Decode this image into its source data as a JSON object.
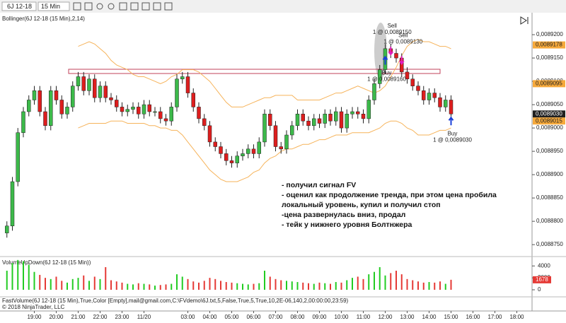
{
  "toolbar": {
    "instrument": "6J 12-18",
    "interval": "15 Min"
  },
  "chart_data": [
    {
      "type": "candlestick",
      "title": "Bollinger(6J 12-18 (15 Min),2,14)",
      "up_color": "#3cb94a",
      "down_color": "#dd1e1e",
      "open": [
        0.0088775,
        0.008879,
        0.0088885,
        0.008899,
        0.0089035,
        0.008906,
        0.008908,
        0.0089035,
        0.0089005,
        0.008908,
        0.008906,
        0.008903,
        0.0089045,
        0.008909,
        0.008911,
        0.008908,
        0.0089105,
        0.0089065,
        0.008909,
        0.0089065,
        0.008906,
        0.0089045,
        0.0089035,
        0.008904,
        0.0089045,
        0.008903,
        0.008905,
        0.0089035,
        0.0089035,
        0.008902,
        0.0089015,
        0.0089045,
        0.0089105,
        0.008911,
        0.0089075,
        0.0089045,
        0.008902,
        0.0089005,
        0.008897,
        0.008896,
        0.0088945,
        0.008893,
        0.0088925,
        0.008894,
        0.0088945,
        0.0088955,
        0.0088945,
        0.008897,
        0.008903,
        0.0089005,
        0.008896,
        0.0088955,
        0.0088985,
        0.0089005,
        0.008903,
        0.0089015,
        0.0089005,
        0.008902,
        0.008901,
        0.008903,
        0.0089015,
        0.0089035,
        0.0089,
        0.008903,
        0.0089035,
        0.008903,
        0.008902,
        0.008906,
        0.0089095,
        0.0089125,
        0.008917,
        0.008916,
        0.008915,
        0.008912,
        0.0089105,
        0.008909,
        0.008908,
        0.008906,
        0.0089075,
        0.0089065,
        0.0089045,
        0.008906
      ],
      "high": [
        0.00888,
        0.0088895,
        0.0089,
        0.0089045,
        0.008907,
        0.008909,
        0.008909,
        0.0089045,
        0.008909,
        0.008909,
        0.008907,
        0.0089055,
        0.00891,
        0.008912,
        0.008912,
        0.0089115,
        0.0089115,
        0.00891,
        0.00891,
        0.0089075,
        0.008907,
        0.0089055,
        0.008905,
        0.0089055,
        0.0089055,
        0.008906,
        0.008906,
        0.0089045,
        0.0089045,
        0.008903,
        0.0089055,
        0.0089115,
        0.008912,
        0.008912,
        0.0089085,
        0.0089055,
        0.008903,
        0.0089015,
        0.008898,
        0.008897,
        0.0088955,
        0.008894,
        0.008895,
        0.0088955,
        0.0088965,
        0.0088965,
        0.008898,
        0.008904,
        0.008904,
        0.0089015,
        0.008897,
        0.0088995,
        0.0089015,
        0.008904,
        0.008904,
        0.0089025,
        0.008903,
        0.008903,
        0.008904,
        0.008904,
        0.0089045,
        0.0089045,
        0.008904,
        0.0089045,
        0.0089045,
        0.008904,
        0.008907,
        0.0089105,
        0.0089135,
        0.008918,
        0.008918,
        0.008917,
        0.008916,
        0.008913,
        0.0089115,
        0.00891,
        0.008909,
        0.0089085,
        0.0089085,
        0.0089075,
        0.008907,
        0.008907
      ],
      "low": [
        0.0088765,
        0.008878,
        0.0088875,
        0.008898,
        0.0089025,
        0.008905,
        0.0089025,
        0.0088995,
        0.0088995,
        0.008905,
        0.008902,
        0.008902,
        0.0089035,
        0.008908,
        0.008907,
        0.008907,
        0.0089055,
        0.0089055,
        0.0089055,
        0.008905,
        0.0089035,
        0.0089025,
        0.0089025,
        0.008903,
        0.008902,
        0.008902,
        0.0089025,
        0.0089025,
        0.008901,
        0.0089005,
        0.0089005,
        0.0089035,
        0.0089095,
        0.0089065,
        0.0089035,
        0.008901,
        0.0088995,
        0.008896,
        0.008895,
        0.0088935,
        0.008892,
        0.0088915,
        0.0088915,
        0.008893,
        0.0088935,
        0.0088935,
        0.0088935,
        0.008896,
        0.0088995,
        0.008895,
        0.0088945,
        0.0088945,
        0.0088975,
        0.0088995,
        0.0089005,
        0.0088995,
        0.0088995,
        0.0089,
        0.0089,
        0.0089005,
        0.0089005,
        0.008899,
        0.008899,
        0.008902,
        0.008902,
        0.008901,
        0.008901,
        0.008905,
        0.0089085,
        0.0089115,
        0.008915,
        0.008914,
        0.008911,
        0.0089095,
        0.008908,
        0.008907,
        0.008905,
        0.008905,
        0.0089055,
        0.0089035,
        0.0089035,
        0.008902
      ],
      "close": [
        0.008879,
        0.0088885,
        0.008899,
        0.0089035,
        0.008906,
        0.008908,
        0.0089035,
        0.0089005,
        0.008908,
        0.008906,
        0.008903,
        0.0089045,
        0.008909,
        0.008911,
        0.008908,
        0.0089105,
        0.0089065,
        0.008909,
        0.0089065,
        0.008906,
        0.0089045,
        0.0089035,
        0.008904,
        0.0089045,
        0.008903,
        0.008905,
        0.0089035,
        0.0089035,
        0.008902,
        0.0089015,
        0.0089045,
        0.0089105,
        0.008911,
        0.0089075,
        0.0089045,
        0.008902,
        0.0089005,
        0.008897,
        0.008896,
        0.0088945,
        0.008893,
        0.0088925,
        0.008894,
        0.0088945,
        0.0088955,
        0.0088945,
        0.008897,
        0.008903,
        0.0089005,
        0.008896,
        0.0088955,
        0.0088985,
        0.0089005,
        0.008903,
        0.0089015,
        0.0089005,
        0.008902,
        0.008901,
        0.008903,
        0.0089015,
        0.0089035,
        0.0089,
        0.008903,
        0.0089035,
        0.008903,
        0.008902,
        0.008906,
        0.0089095,
        0.0089125,
        0.008917,
        0.008916,
        0.008915,
        0.008912,
        0.0089105,
        0.008909,
        0.008908,
        0.008906,
        0.0089075,
        0.0089065,
        0.0089045,
        0.008906,
        0.008903
      ],
      "bands": {
        "color": "#f6b35a",
        "upper": [
          null,
          null,
          null,
          null,
          null,
          null,
          null,
          null,
          null,
          null,
          null,
          null,
          null,
          0.0089175,
          0.008918,
          0.0089185,
          0.008918,
          0.008917,
          0.008916,
          0.0089145,
          0.0089135,
          0.008913,
          0.0089125,
          0.0089115,
          0.008911,
          0.008911,
          0.0089105,
          0.00891,
          0.0089095,
          0.00891,
          0.008911,
          0.0089115,
          0.0089125,
          0.0089125,
          0.0089125,
          0.008912,
          0.008911,
          0.00891,
          0.0089085,
          0.008907,
          0.0089055,
          0.0089045,
          0.0089045,
          0.0089045,
          0.008905,
          0.0089055,
          0.008906,
          0.0089065,
          0.0089065,
          0.008907,
          0.008907,
          0.008907,
          0.008907,
          0.008906,
          0.008906,
          0.008906,
          0.008906,
          0.008906,
          0.0089065,
          0.008907,
          0.0089075,
          0.0089075,
          0.008908,
          0.0089085,
          0.008909,
          0.0089085,
          0.008908,
          0.0089075,
          0.008908,
          0.008909,
          0.008911,
          0.008913,
          0.0089155,
          0.0089175,
          0.0089185,
          0.008919,
          0.0089185,
          0.0089185,
          0.008918,
          0.0089175,
          0.0089175,
          0.008917
        ],
        "lower": [
          null,
          null,
          null,
          null,
          null,
          null,
          null,
          null,
          null,
          null,
          null,
          null,
          null,
          0.0089,
          0.0089005,
          0.008901,
          0.008901,
          0.008901,
          0.008901,
          0.0089015,
          0.0089015,
          0.0089015,
          0.008901,
          0.008901,
          0.008901,
          0.008901,
          0.0089005,
          0.0089005,
          0.0089,
          0.0089,
          0.0088995,
          0.0088995,
          0.0088985,
          0.008897,
          0.0088955,
          0.008894,
          0.0088925,
          0.008891,
          0.00889,
          0.008889,
          0.0088885,
          0.0088885,
          0.0088885,
          0.008889,
          0.0088895,
          0.0088905,
          0.008891,
          0.0088925,
          0.0088935,
          0.008894,
          0.008895,
          0.0088955,
          0.0088955,
          0.008896,
          0.0088965,
          0.0088965,
          0.008897,
          0.0088975,
          0.0088975,
          0.008898,
          0.0088985,
          0.0088985,
          0.0088985,
          0.008899,
          0.008899,
          0.008899,
          0.008899,
          0.0088995,
          0.0089,
          0.008901,
          0.0089015,
          0.0089015,
          0.008901,
          0.0089,
          0.0088995,
          0.0088985,
          0.0088985,
          0.0088985,
          0.008899,
          0.0088995,
          0.0088995,
          0.0089
        ]
      },
      "xlim": [
        -1,
        95
      ],
      "xticks": [
        {
          "value": 5,
          "label": "19:00"
        },
        {
          "value": 9,
          "label": "20:00"
        },
        {
          "value": 13,
          "label": "21:00"
        },
        {
          "value": 17,
          "label": "22:00"
        },
        {
          "value": 21,
          "label": "23:00"
        },
        {
          "value": 25,
          "label": "11/20"
        },
        {
          "value": 33,
          "label": "03:00"
        },
        {
          "value": 37,
          "label": "04:00"
        },
        {
          "value": 41,
          "label": "05:00"
        },
        {
          "value": 45,
          "label": "06:00"
        },
        {
          "value": 49,
          "label": "07:00"
        },
        {
          "value": 53,
          "label": "08:00"
        },
        {
          "value": 57,
          "label": "09:00"
        },
        {
          "value": 61,
          "label": "10:00"
        },
        {
          "value": 65,
          "label": "11:00"
        },
        {
          "value": 69,
          "label": "12:00"
        },
        {
          "value": 73,
          "label": "13:00"
        },
        {
          "value": 77,
          "label": "14:00"
        },
        {
          "value": 81,
          "label": "15:00"
        },
        {
          "value": 85,
          "label": "16:00"
        },
        {
          "value": 89,
          "label": "17:00"
        },
        {
          "value": 93,
          "label": "18:00"
        }
      ],
      "ylim": [
        0.0088729,
        0.0089241
      ],
      "yticks": [
        {
          "value": 0.008875,
          "label": "0,0088750"
        },
        {
          "value": 0.00888,
          "label": "0,0088800"
        },
        {
          "value": 0.008885,
          "label": "0,0088850"
        },
        {
          "value": 0.00889,
          "label": "0,0088900"
        },
        {
          "value": 0.008895,
          "label": "0,0088950"
        },
        {
          "value": 0.0089,
          "label": "0,0089000"
        },
        {
          "value": 0.008905,
          "label": "0,0089050"
        },
        {
          "value": 0.00891,
          "label": "0,0089100"
        },
        {
          "value": 0.008915,
          "label": "0,0089150"
        },
        {
          "value": 0.00892,
          "label": "0,0089200"
        }
      ],
      "price_markers": [
        {
          "value": 0.0089178,
          "label": "0,0089178",
          "color": "#f6a93b"
        },
        {
          "value": 0.0089095,
          "label": "0,0089095",
          "color": "#f6a93b"
        },
        {
          "value": 0.008903,
          "label": "0,0089030",
          "color": "#202020"
        },
        {
          "value": 0.0089015,
          "label": "0,0089015",
          "color": "#f6a93b"
        }
      ],
      "trades": [
        {
          "side": "Sell",
          "label": "1 @ 0,0089150",
          "index": 70,
          "price": 0.008915,
          "color": "#e020c0"
        },
        {
          "side": "Sell",
          "label": "1 @ 0,0089130",
          "index": 72,
          "price": 0.008913,
          "color": "#e020c0"
        },
        {
          "side": "Buy",
          "label": "1 @ 0,0089160",
          "index": 69,
          "price": 0.008916,
          "color": "#1a3fd8"
        },
        {
          "side": "Buy",
          "label": "1 @ 0,0089030",
          "index": 81,
          "price": 0.008903,
          "color": "#1a3fd8"
        }
      ]
    },
    {
      "type": "bar",
      "title": "VolumeUpDown(6J 12-18 (15 Min))",
      "values": [
        3200,
        4500,
        5000,
        4800,
        4200,
        3000,
        2500,
        2000,
        1800,
        2200,
        1500,
        1200,
        1800,
        2000,
        2400,
        1500,
        2200,
        1800,
        3800,
        1600,
        1400,
        1200,
        1000,
        900,
        1100,
        1000,
        900,
        700,
        800,
        900,
        1000,
        2600,
        2200,
        1800,
        1400,
        1200,
        1500,
        2000,
        1800,
        1500,
        1300,
        1200,
        1100,
        1000,
        900,
        1000,
        1100,
        3200,
        2200,
        1800,
        1600,
        1500,
        1400,
        1300,
        1200,
        1100,
        1000,
        1200,
        1100,
        1000,
        1300,
        1200,
        1600,
        2000,
        2200,
        1800,
        2600,
        3000,
        3800,
        2400,
        2800,
        3200,
        2600,
        1800,
        1600,
        1400,
        1200,
        1300,
        1200,
        1400,
        1000,
        1678
      ],
      "up_color": "#22cc22",
      "down_color": "#e53935",
      "ylim": [
        0,
        5100
      ],
      "yticks": [
        0,
        2000,
        4000
      ],
      "last_marker": {
        "value": 1678,
        "color": "#e53935"
      }
    }
  ],
  "notes": [
    "- получил сигнал FV",
    "- оценил как продолжение тренда, при этом цена пробила",
    "локальный уровень, купил и получил стоп",
    "-цена развернулась вниз, продал",
    "- тейк у нижнего уровня Болтнжера"
  ],
  "footer": {
    "indicator": "FastVolume(6J 12-18  (15 Min),True,Color  [Empty],mail@gmail.com,C:\\FVdemo\\6J.txt,5,False,True,5,True,10,2E-06,140,2,00:00:00,23:59)",
    "copyright": "© 2018 NinjaTrader, LLC"
  }
}
